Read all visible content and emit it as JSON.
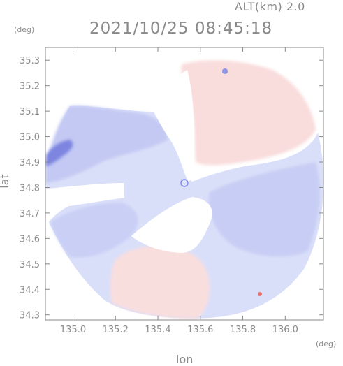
{
  "header": {
    "alt_label": "ALT(km) 2.0",
    "timestamp": "2021/10/25 08:45:18",
    "y_unit": "(deg)",
    "x_unit": "(deg)"
  },
  "chart_data": {
    "type": "heatmap",
    "title": "2021/10/25 08:45:18",
    "subtitle": "ALT(km) 2.0",
    "xlabel": "lon",
    "ylabel": "lat",
    "x_unit": "(deg)",
    "y_unit": "(deg)",
    "xlim": [
      134.87,
      136.18
    ],
    "ylim": [
      34.28,
      35.35
    ],
    "x_ticks": [
      135.0,
      135.2,
      135.4,
      135.6,
      135.8,
      136.0
    ],
    "x_tick_labels": [
      "135.0",
      "135.2",
      "135.4",
      "135.6",
      "135.8",
      "136.0"
    ],
    "y_ticks": [
      34.3,
      34.4,
      34.5,
      34.6,
      34.7,
      34.8,
      34.9,
      35.0,
      35.1,
      35.2,
      35.3
    ],
    "y_tick_labels": [
      "34.3",
      "34.4",
      "34.5",
      "34.6",
      "34.7",
      "34.8",
      "34.9",
      "35.0",
      "35.1",
      "35.2",
      "35.3"
    ],
    "grid": false,
    "radar_center": {
      "lon": 135.52,
      "lat": 34.82
    },
    "colors": {
      "approach": "#c8cff6",
      "approach_strong": "#7f86e3",
      "recede": "#f8dede",
      "recede_strong": "#f0b8b8",
      "axis": "#8a8a8a"
    },
    "regions": [
      {
        "sign": "receding",
        "center": {
          "lon": 135.88,
          "lat": 35.07
        }
      },
      {
        "sign": "receding",
        "center": {
          "lon": 135.5,
          "lat": 34.42
        }
      },
      {
        "sign": "approaching",
        "center": {
          "lon": 135.06,
          "lat": 35.0
        }
      },
      {
        "sign": "approaching",
        "center": {
          "lon": 135.85,
          "lat": 34.72
        }
      },
      {
        "sign": "approaching",
        "center": {
          "lon": 135.15,
          "lat": 34.65
        }
      }
    ]
  }
}
